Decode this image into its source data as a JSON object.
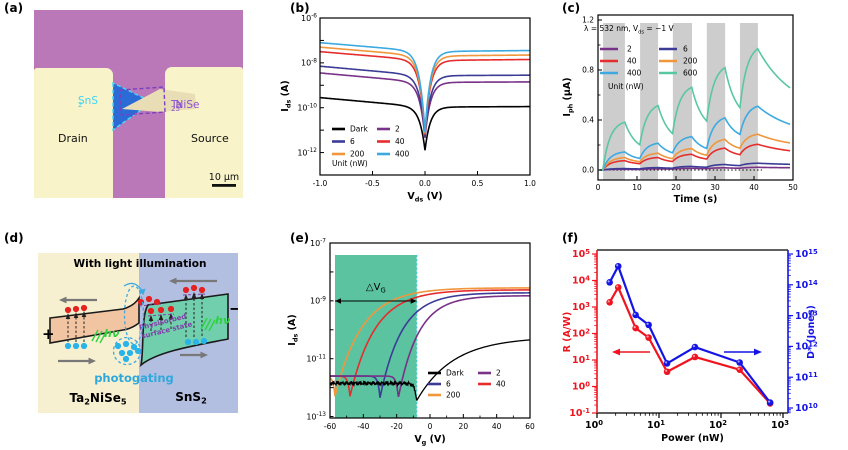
{
  "figure": {
    "panel_labels": {
      "a": "(a)",
      "b": "(b)",
      "c": "(c)",
      "d": "(d)",
      "e": "(e)",
      "f": "(f)"
    }
  },
  "panel_a": {
    "labels": {
      "sns2": "SnS_{2}",
      "ta2nise5": "Ta_{2}NiSe_{5}",
      "drain": "Drain",
      "source": "Source",
      "scalebar": "10 μm"
    },
    "colors": {
      "background": "#BA78B9",
      "electrode": "#F8F3C8",
      "sns2_flake": "#2B6BD5",
      "sns2_outline": "#45D8F5",
      "sns2_label": "#3FD6F7",
      "ta2nise5_outline": "#7B3FC0",
      "ta2nise5_label": "#8B51D5",
      "flake_tan": "#E8DDB4",
      "scalebar": "#111111"
    }
  },
  "panel_d": {
    "title": "With light illumination",
    "labels": {
      "photogating": "photogating",
      "surface_state_line1": "Physisorbed",
      "surface_state_line2": "surface state",
      "hv": "hν",
      "plus": "+",
      "minus": "−",
      "ta2nise5": "Ta_{2}NiSe_{5}",
      "sns2": "SnS_{2}"
    },
    "colors": {
      "left_bg": "#F7F0D0",
      "right_bg": "#B3BFE1",
      "left_band": "#F1C4A2",
      "right_band": "#72CFAE",
      "electron": "#E62020",
      "hole": "#28B4E8",
      "hv_green": "#2FD13F",
      "arrow_gray": "#787878",
      "photogating": "#2FA8DC",
      "surface_state_text": "#8040A8",
      "dashed_blue": "#3FA8E0"
    }
  },
  "chart_data": [
    {
      "id": "b",
      "type": "line",
      "xlabel": "V_{ds} (V)",
      "ylabel": "I_{ds} (A)",
      "xlim": [
        -1,
        1
      ],
      "x_ticks": [
        -1,
        -0.5,
        0,
        0.5,
        1
      ],
      "x_tick_labels": [
        "-1.0",
        "-0.5",
        "0.0",
        "0.5",
        "1.0"
      ],
      "y_log_range_exp": [
        -6,
        -13
      ],
      "y_label_exps": [
        -6,
        -8,
        -10,
        -12
      ],
      "legend": {
        "columns": [
          [
            {
              "label": "Dark",
              "color": "#000000"
            },
            {
              "label": "6",
              "color": "#3C3C96"
            },
            {
              "label": "200",
              "color": "#F0963C"
            }
          ],
          [
            {
              "label": "2",
              "color": "#783287"
            },
            {
              "label": "40",
              "color": "#E62D2D"
            },
            {
              "label": "400",
              "color": "#3CAAE1"
            }
          ]
        ],
        "unit": "Unit (nW)"
      },
      "series": [
        {
          "name": "Dark",
          "color": "#000000",
          "log_left": -9.55,
          "log_right": -9.95,
          "log_min": -11.9
        },
        {
          "name": "2",
          "color": "#783287",
          "log_left": -8.45,
          "log_right": -8.85,
          "log_min": -11.35
        },
        {
          "name": "6",
          "color": "#3C3C96",
          "log_left": -8.15,
          "log_right": -8.55,
          "log_min": -11.3
        },
        {
          "name": "40",
          "color": "#E62D2D",
          "log_left": -7.5,
          "log_right": -7.85,
          "log_min": -11.2
        },
        {
          "name": "200",
          "color": "#F0963C",
          "log_left": -7.3,
          "log_right": -7.65,
          "log_min": -11.15
        },
        {
          "name": "400",
          "color": "#3CAAE1",
          "log_left": -7.1,
          "log_right": -7.45,
          "log_min": -11.1
        }
      ]
    },
    {
      "id": "c",
      "type": "line",
      "header": "λ = 532 nm, V_{ds} = −1 V",
      "xlabel": "Time (s)",
      "ylabel": "I_{ph} (μA)",
      "x_ticks": [
        0,
        10,
        20,
        30,
        40,
        50
      ],
      "y_ticks": [
        0.0,
        0.4,
        0.8,
        1.2
      ],
      "y_tick_labels": [
        "0.0",
        "0.4",
        "0.8",
        "1.2"
      ],
      "bar_color": "#CDCDCD",
      "light_pulses_s": [
        [
          1.3,
          6.9
        ],
        [
          10.8,
          15.4
        ],
        [
          19.2,
          24.1
        ],
        [
          27.9,
          32.6
        ],
        [
          36.4,
          41.0
        ]
      ],
      "legend": {
        "columns": [
          [
            {
              "label": "2",
              "color": "#783287"
            },
            {
              "label": "40",
              "color": "#E62D2D"
            },
            {
              "label": "400",
              "color": "#3CAAE1"
            }
          ],
          [
            {
              "label": "6",
              "color": "#3C3C96"
            },
            {
              "label": "200",
              "color": "#F0963C"
            },
            {
              "label": "600",
              "color": "#5AC7A4"
            }
          ]
        ],
        "unit": "Unit (nW)"
      },
      "series": [
        {
          "name": "2",
          "color": "#783287",
          "peaks": [
            0.006,
            0.01,
            0.014,
            0.018,
            0.022
          ],
          "valleys": [
            0.004,
            0.007,
            0.01,
            0.013,
            0.016
          ]
        },
        {
          "name": "6",
          "color": "#3C3C96",
          "peaks": [
            0.012,
            0.02,
            0.03,
            0.046,
            0.056
          ],
          "valleys": [
            0.008,
            0.013,
            0.02,
            0.032,
            0.04
          ]
        },
        {
          "name": "40",
          "color": "#E62D2D",
          "peaks": [
            0.078,
            0.104,
            0.13,
            0.182,
            0.213
          ],
          "valleys": [
            0.042,
            0.056,
            0.075,
            0.105,
            0.12
          ]
        },
        {
          "name": "200",
          "color": "#F0963C",
          "peaks": [
            0.104,
            0.14,
            0.177,
            0.255,
            0.296
          ],
          "valleys": [
            0.055,
            0.075,
            0.1,
            0.15,
            0.17
          ]
        },
        {
          "name": "400",
          "color": "#3CAAE1",
          "peaks": [
            0.151,
            0.224,
            0.276,
            0.437,
            0.53
          ],
          "valleys": [
            0.075,
            0.11,
            0.14,
            0.24,
            0.27
          ]
        },
        {
          "name": "600",
          "color": "#5AC7A4",
          "peaks": [
            0.4,
            0.54,
            0.687,
            0.853,
            1.01
          ],
          "valleys": [
            0.14,
            0.21,
            0.3,
            0.39,
            0.45
          ]
        }
      ]
    },
    {
      "id": "e",
      "type": "line",
      "xlabel": "V_{g} (V)",
      "ylabel": "I_{ds} (A)",
      "x_ticks": [
        -60,
        -40,
        -20,
        0,
        20,
        40,
        60
      ],
      "y_log_range_exp": [
        -7,
        -13
      ],
      "y_label_exps": [
        -7,
        -9,
        -11,
        -13
      ],
      "annotation": "△V_{G}",
      "region": {
        "x1_V": -57,
        "x2_V": -8,
        "color": "#5CC3A0",
        "border_color": "#46C8C8"
      },
      "legend": {
        "columns": [
          [
            {
              "label": "Dark",
              "color": "#000000"
            },
            {
              "label": "6",
              "color": "#3C3C96"
            },
            {
              "label": "200",
              "color": "#F0963C"
            }
          ],
          [
            {
              "label": "2",
              "color": "#783287"
            },
            {
              "label": "40",
              "color": "#E62D2D"
            }
          ]
        ]
      },
      "series": [
        {
          "name": "200",
          "color": "#F0963C",
          "v_dip": -57,
          "plateau": -11.6,
          "min": -12.3,
          "sat": -8.55,
          "tau": 16
        },
        {
          "name": "40",
          "color": "#E62D2D",
          "v_dip": -48,
          "plateau": -11.6,
          "min": -12.3,
          "sat": -8.62,
          "tau": 15
        },
        {
          "name": "6",
          "color": "#3C3C96",
          "v_dip": -30,
          "plateau": -11.6,
          "min": -12.35,
          "sat": -8.72,
          "tau": 13
        },
        {
          "name": "2",
          "color": "#783287",
          "v_dip": -19,
          "plateau": -11.6,
          "min": -12.35,
          "sat": -8.82,
          "tau": 12
        },
        {
          "name": "Dark",
          "color": "#000000",
          "v_dip": -8,
          "plateau": -11.85,
          "min": -12.45,
          "sat": -10.25,
          "tau": 22,
          "noisy": true
        }
      ]
    },
    {
      "id": "f",
      "type": "scatter-line",
      "xlabel": "Power (nW)",
      "x_exp_ticks": [
        0,
        1,
        2,
        3
      ],
      "left_axis": {
        "label": "R (A/W)",
        "color": "#F01420",
        "exp_ticks": [
          5,
          4,
          3,
          2,
          1,
          0,
          -1
        ]
      },
      "right_axis": {
        "label": "D* (Jones)",
        "color": "#1414E6",
        "exp_ticks": [
          15,
          14,
          13,
          12,
          11,
          10
        ]
      },
      "power_nW": [
        1.6,
        2.2,
        4.2,
        6.8,
        13.5,
        38,
        200,
        620
      ],
      "responsivity_AW": [
        1500,
        5500,
        160,
        70,
        3.6,
        13,
        4.3,
        0.23
      ],
      "detectivity_Jones": [
        120000000000000.0,
        400000000000000.0,
        10500000000000.0,
        5000000000000.0,
        280000000000.0,
        950000000000.0,
        300000000000.0,
        15000000000.0
      ]
    }
  ]
}
